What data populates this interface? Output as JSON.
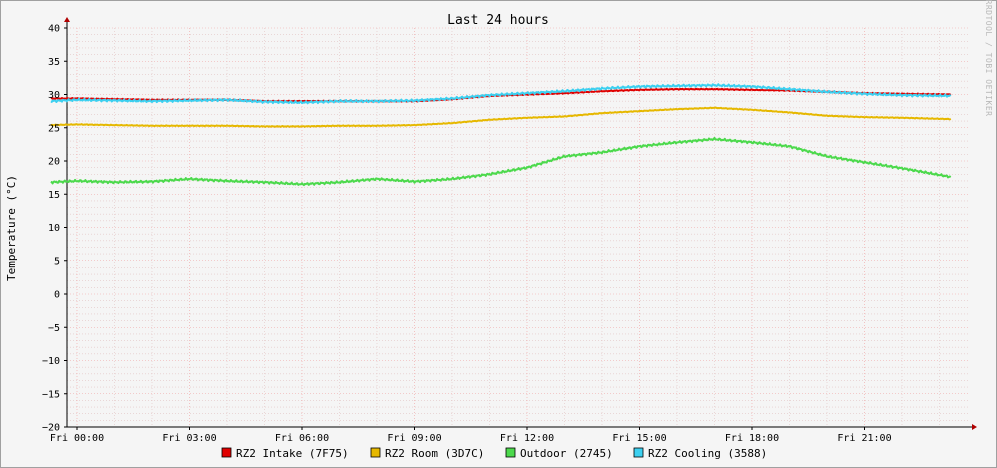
{
  "chart_data": {
    "type": "line",
    "title": "Last 24 hours",
    "ylabel": "Temperature (°C)",
    "xlabel": "",
    "watermark": "RRDTOOL / TOBI OETIKER",
    "ylim": [
      -20,
      40
    ],
    "yticks": [
      "40",
      "35",
      "30",
      "25",
      "20",
      "15",
      "10",
      "5",
      "0",
      "−5",
      "−10",
      "−15",
      "−20"
    ],
    "xticks": [
      "Fri 00:00",
      "Fri 03:00",
      "Fri 06:00",
      "Fri 09:00",
      "Fri 12:00",
      "Fri 15:00",
      "Fri 18:00",
      "Fri 21:00"
    ],
    "x_hours": [
      -0.7,
      0,
      1,
      2,
      3,
      4,
      5,
      6,
      7,
      8,
      9,
      10,
      11,
      12,
      13,
      14,
      15,
      16,
      17,
      18,
      19,
      20,
      21,
      22,
      23.3
    ],
    "grid": true,
    "legend_position": "bottom",
    "series": [
      {
        "name": "RZ2 Intake (7F75)",
        "color": "#e00000",
        "values": [
          29.4,
          29.4,
          29.3,
          29.2,
          29.2,
          29.2,
          29.0,
          29.0,
          29.0,
          29.0,
          29.0,
          29.3,
          29.8,
          30.0,
          30.2,
          30.5,
          30.7,
          30.8,
          30.8,
          30.7,
          30.6,
          30.4,
          30.2,
          30.1,
          30.0
        ]
      },
      {
        "name": "RZ2 Room (3D7C)",
        "color": "#e6b800",
        "values": [
          25.4,
          25.5,
          25.4,
          25.3,
          25.3,
          25.3,
          25.2,
          25.2,
          25.3,
          25.3,
          25.4,
          25.7,
          26.2,
          26.5,
          26.7,
          27.2,
          27.5,
          27.8,
          28.0,
          27.7,
          27.3,
          26.8,
          26.6,
          26.5,
          26.3
        ]
      },
      {
        "name": "Outdoor (2745)",
        "color": "#4cd94c",
        "values": [
          16.8,
          17.0,
          16.8,
          16.9,
          17.3,
          17.0,
          16.8,
          16.5,
          16.8,
          17.3,
          16.9,
          17.3,
          18.0,
          19.0,
          20.7,
          21.3,
          22.2,
          22.8,
          23.3,
          22.8,
          22.2,
          20.7,
          19.8,
          18.9,
          17.6
        ]
      },
      {
        "name": "RZ2 Cooling (3588)",
        "color": "#3cd0f0",
        "values": [
          29.0,
          29.2,
          29.1,
          29.0,
          29.1,
          29.2,
          28.9,
          28.8,
          29.0,
          29.0,
          29.1,
          29.4,
          29.9,
          30.2,
          30.5,
          30.9,
          31.2,
          31.3,
          31.4,
          31.2,
          30.8,
          30.4,
          30.1,
          29.9,
          29.8
        ]
      }
    ]
  }
}
